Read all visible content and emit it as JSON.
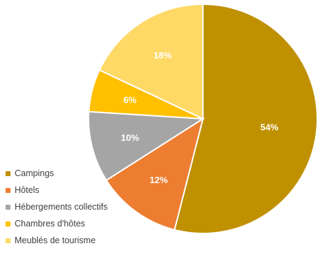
{
  "chart_data": {
    "type": "pie",
    "title": "",
    "slices": [
      {
        "label": "Campings",
        "value": 54,
        "display": "54%",
        "color": "#bf9000"
      },
      {
        "label": "Hôtels",
        "value": 12,
        "display": "12%",
        "color": "#ed7d31"
      },
      {
        "label": "Hébergements collectifs",
        "value": 10,
        "display": "10%",
        "color": "#a5a5a5"
      },
      {
        "label": "Chambres d'hôtes",
        "value": 6,
        "display": "6%",
        "color": "#ffc000"
      },
      {
        "label": "Meublés de tourisme",
        "value": 18,
        "display": "18%",
        "color": "#ffd966"
      }
    ],
    "legend_position": "bottom-left",
    "start_angle": "12 o'clock, clockwise"
  }
}
